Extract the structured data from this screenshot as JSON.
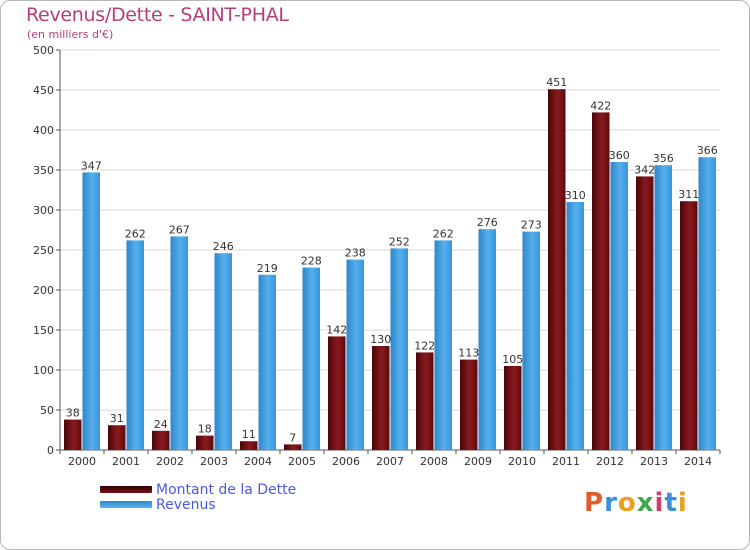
{
  "title": "Revenus/Dette - SAINT-PHAL",
  "subtitle": "(en milliers d'€)",
  "colors": {
    "dette": "#7a1216",
    "revenus": "#3d9fe2",
    "axis_text": "#333333",
    "grid": "#d9d9d9"
  },
  "chart_data": {
    "type": "bar",
    "title": "Revenus/Dette - SAINT-PHAL",
    "ylabel": "(en milliers d'€)",
    "xlabel": "",
    "ylim": [
      0,
      500
    ],
    "yticks": [
      0,
      50,
      100,
      150,
      200,
      250,
      300,
      350,
      400,
      450,
      500
    ],
    "categories": [
      "2000",
      "2001",
      "2002",
      "2003",
      "2004",
      "2005",
      "2006",
      "2007",
      "2008",
      "2009",
      "2010",
      "2011",
      "2012",
      "2013",
      "2014"
    ],
    "series": [
      {
        "name": "Montant de la Dette",
        "values": [
          38,
          31,
          24,
          18,
          11,
          7,
          142,
          130,
          122,
          113,
          105,
          451,
          422,
          342,
          311
        ]
      },
      {
        "name": "Revenus",
        "values": [
          347,
          262,
          267,
          246,
          219,
          228,
          238,
          252,
          262,
          276,
          273,
          310,
          360,
          356,
          366
        ]
      }
    ],
    "legend_position": "bottom-left",
    "grid": true
  },
  "legend": {
    "items": [
      {
        "label": "Montant de la Dette"
      },
      {
        "label": "Revenus"
      }
    ]
  },
  "logo": {
    "letters": [
      "P",
      "r",
      "o",
      "x",
      "i",
      "t",
      "i"
    ],
    "colors": [
      "#e35b2b",
      "#3a8fd8",
      "#e8a020",
      "#3ea84a",
      "#d83a6a",
      "#3a8fd8",
      "#e8a020"
    ]
  }
}
